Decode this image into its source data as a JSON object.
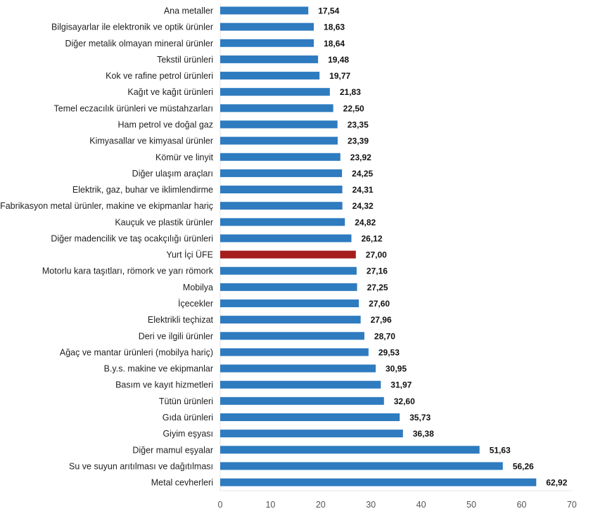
{
  "chart_data": {
    "type": "bar",
    "orientation": "horizontal",
    "categories": [
      "Ana metaller",
      "Bilgisayarlar ile elektronik ve optik ürünler",
      "Diğer metalik olmayan mineral ürünler",
      "Tekstil ürünleri",
      "Kok ve rafine petrol ürünleri",
      "Kağıt ve kağıt ürünleri",
      "Temel eczacılık ürünleri ve müstahzarları",
      "Ham petrol ve doğal gaz",
      "Kimyasallar ve kimyasal ürünler",
      "Kömür ve linyit",
      "Diğer ulaşım araçları",
      "Elektrik, gaz, buhar ve iklimlendirme",
      "Fabrikasyon metal ürünler, makine ve ekipmanlar hariç",
      "Kauçuk ve plastik ürünler",
      "Diğer madencilik ve taş ocakçılığı ürünleri",
      "Yurt İçi ÜFE",
      "Motorlu kara taşıtları, römork ve yarı römork",
      "Mobilya",
      "İçecekler",
      "Elektrikli teçhizat",
      "Deri ve ilgili ürünler",
      "Ağaç ve mantar ürünleri (mobilya hariç)",
      "B.y.s. makine ve ekipmanlar",
      "Basım ve kayıt hizmetleri",
      "Tütün ürünleri",
      "Gıda ürünleri",
      "Giyim eşyası",
      "Diğer mamul eşyalar",
      "Su ve suyun arıtılması ve dağıtılması",
      "Metal cevherleri"
    ],
    "values": [
      17.54,
      18.63,
      18.64,
      19.48,
      19.77,
      21.83,
      22.5,
      23.35,
      23.39,
      23.92,
      24.25,
      24.31,
      24.32,
      24.82,
      26.12,
      27.0,
      27.16,
      27.25,
      27.6,
      27.96,
      28.7,
      29.53,
      30.95,
      31.97,
      32.6,
      35.73,
      36.38,
      51.63,
      56.26,
      62.92
    ],
    "value_labels": [
      "17,54",
      "18,63",
      "18,64",
      "19,48",
      "19,77",
      "21,83",
      "22,50",
      "23,35",
      "23,39",
      "23,92",
      "24,25",
      "24,31",
      "24,32",
      "24,82",
      "26,12",
      "27,00",
      "27,16",
      "27,25",
      "27,60",
      "27,96",
      "28,70",
      "29,53",
      "30,95",
      "31,97",
      "32,60",
      "35,73",
      "36,38",
      "51,63",
      "56,26",
      "62,92"
    ],
    "highlight_category": "Yurt İçi ÜFE",
    "xlim": [
      0,
      70
    ],
    "x_ticks": [
      "0",
      "10",
      "20",
      "30",
      "40",
      "50",
      "60",
      "70"
    ],
    "grid": false,
    "colors": {
      "bar": "#2e7bbf",
      "highlight": "#a51d1d"
    }
  }
}
